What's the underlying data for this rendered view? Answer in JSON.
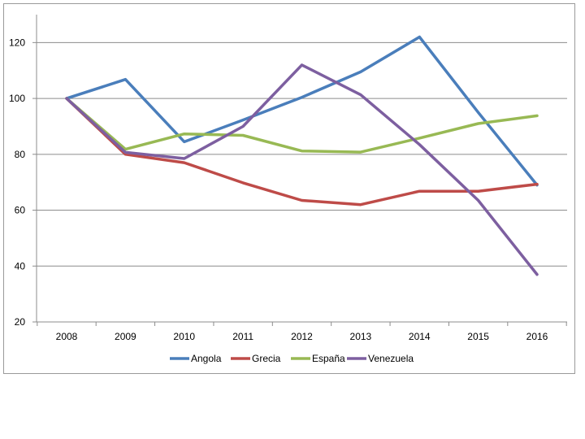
{
  "chart_data": {
    "type": "line",
    "title": "",
    "xlabel": "",
    "ylabel": "",
    "x": [
      "2008",
      "2009",
      "2010",
      "2011",
      "2012",
      "2013",
      "2014",
      "2015",
      "2016"
    ],
    "ylim": [
      20,
      130
    ],
    "yticks": [
      20,
      40,
      60,
      80,
      100,
      120
    ],
    "grid": "horizontal",
    "legend_position": "bottom",
    "series": [
      {
        "name": "Angola",
        "color": "#4a7ebb",
        "values": [
          100,
          106.8,
          84.5,
          92.3,
          100.4,
          109.5,
          122.0,
          95.0,
          69.0
        ]
      },
      {
        "name": "Grecia",
        "color": "#be4b48",
        "values": [
          100,
          80.0,
          77.0,
          69.8,
          63.5,
          62.0,
          66.8,
          66.8,
          69.3
        ]
      },
      {
        "name": "España",
        "color": "#98b954",
        "values": [
          100,
          81.8,
          87.3,
          86.8,
          81.2,
          80.8,
          85.8,
          91.0,
          93.8
        ]
      },
      {
        "name": "Venezuela",
        "color": "#7d5fa0",
        "values": [
          100,
          80.7,
          78.5,
          90.0,
          112.0,
          101.3,
          83.5,
          63.5,
          37.0
        ]
      }
    ]
  }
}
